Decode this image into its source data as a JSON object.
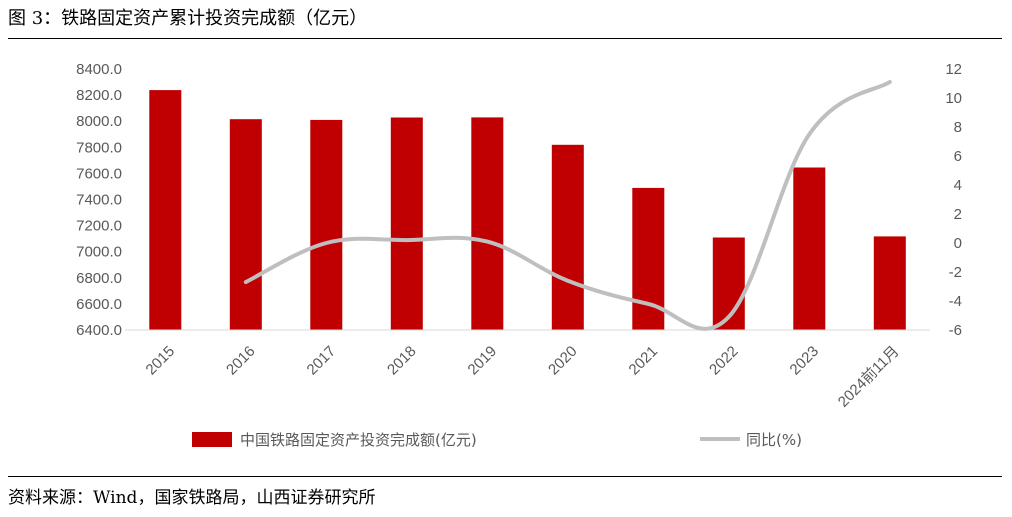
{
  "figure": {
    "title": "图 3：铁路固定资产累计投资完成额（亿元）",
    "source": "资料来源：Wind，国家铁路局，山西证券研究所"
  },
  "chart_data": {
    "type": "bar",
    "categories": [
      "2015",
      "2016",
      "2017",
      "2018",
      "2019",
      "2020",
      "2021",
      "2022",
      "2023",
      "2024前11月"
    ],
    "series": [
      {
        "name": "中国铁路固定资产投资完成额(亿元)",
        "type": "bar",
        "axis": "left",
        "color": "#C00000",
        "values": [
          8238,
          8015,
          8010,
          8028,
          8029,
          7819,
          7489,
          7109,
          7645,
          7117
        ]
      },
      {
        "name": "同比(%)",
        "type": "line",
        "axis": "right",
        "color": "#BFBFBF",
        "values": [
          null,
          -2.7,
          0.0,
          0.2,
          0.1,
          -2.6,
          -4.2,
          -5.1,
          7.5,
          11.1
        ]
      }
    ],
    "y_left": {
      "min": 6400,
      "max": 8400,
      "step": 200,
      "tick_labels": [
        "6400.0",
        "6600.0",
        "6800.0",
        "7000.0",
        "7200.0",
        "7400.0",
        "7600.0",
        "7800.0",
        "8000.0",
        "8200.0",
        "8400.0"
      ]
    },
    "y_right": {
      "min": -6,
      "max": 12,
      "step": 2,
      "tick_labels": [
        "-6",
        "-4",
        "-2",
        "0",
        "2",
        "4",
        "6",
        "8",
        "10",
        "12"
      ]
    },
    "grid": false,
    "legend_position": "bottom",
    "xlabel": "",
    "ylabel": ""
  }
}
